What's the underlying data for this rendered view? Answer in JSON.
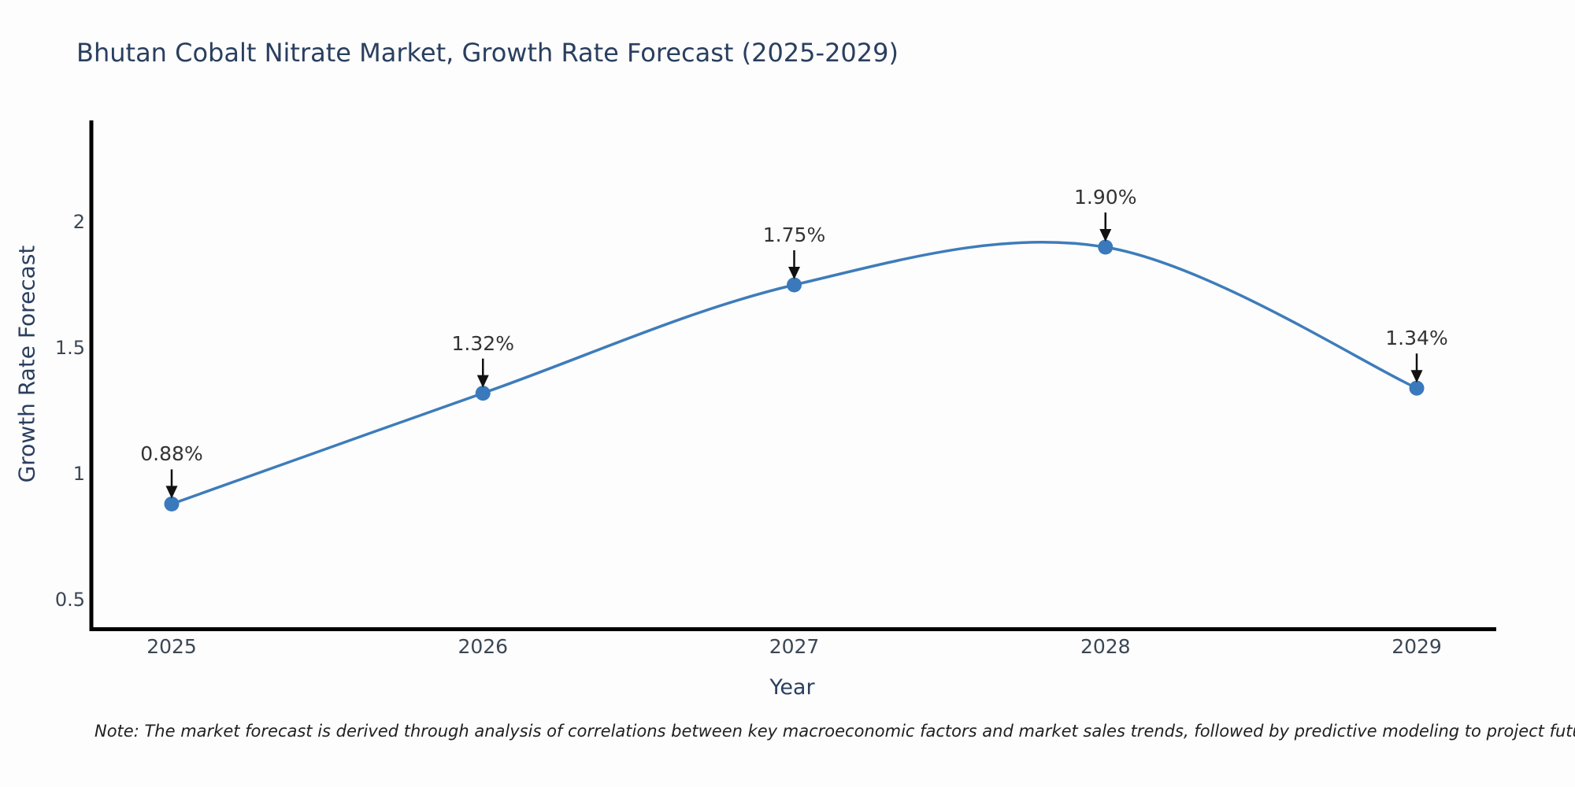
{
  "chart_data": {
    "type": "line",
    "title": "Bhutan Cobalt Nitrate Market, Growth Rate Forecast (2025-2029)",
    "xlabel": "Year",
    "ylabel": "Growth Rate Forecast",
    "x": [
      2025,
      2026,
      2027,
      2028,
      2029
    ],
    "series": [
      {
        "name": "Growth Rate Forecast",
        "values": [
          0.88,
          1.32,
          1.75,
          1.9,
          1.34
        ]
      }
    ],
    "point_labels": [
      "0.88%",
      "1.32%",
      "1.75%",
      "1.90%",
      "1.34%"
    ],
    "xticks": [
      "2025",
      "2026",
      "2027",
      "2028",
      "2029"
    ],
    "yticks": [
      "0.5",
      "1",
      "1.5",
      "2"
    ],
    "ytick_values": [
      0.5,
      1,
      1.5,
      2
    ],
    "xlim": [
      2024.74,
      2029.27
    ],
    "ylim": [
      0.38,
      2.41
    ],
    "grid": false,
    "legend": null,
    "line_shape": "spline",
    "annotations_have_arrows": true,
    "colors": {
      "line": "#3e7cba",
      "marker": "#3a79bc",
      "arrow": "#111111",
      "axis": "#000000",
      "title": "#2a3f5f",
      "annotation_text": "#333333",
      "tick_text": "#3b4754"
    }
  },
  "footnote": {
    "text": "Note: The market forecast is derived through analysis of correlations between key macroeconomic factors and market sales trends, followed by predictive modeling to project future sales"
  }
}
